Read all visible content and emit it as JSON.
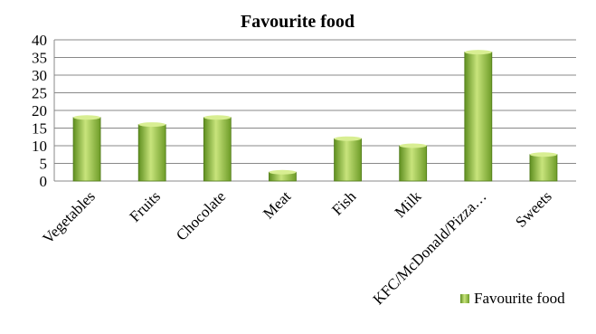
{
  "chart_data": {
    "type": "bar",
    "title": "Favourite food",
    "categories": [
      "Vegetables",
      "Fruits",
      "Chocolate",
      "Meat",
      "Fish",
      "Milk",
      "KFC/McDonald/Pizza…",
      "Sweets"
    ],
    "series": [
      {
        "name": "Favourite food",
        "values": [
          18,
          16,
          18,
          2.5,
          12,
          10,
          36.5,
          7.5
        ]
      }
    ],
    "ylim": [
      0,
      40
    ],
    "yticks": [
      "0",
      "5",
      "10",
      "15",
      "20",
      "25",
      "30",
      "35",
      "40"
    ],
    "grid": true,
    "legend": "bottom-right",
    "colors": {
      "bar_light": "#c6e27a",
      "bar_dark": "#5c8a1e",
      "grid": "#888888"
    }
  }
}
